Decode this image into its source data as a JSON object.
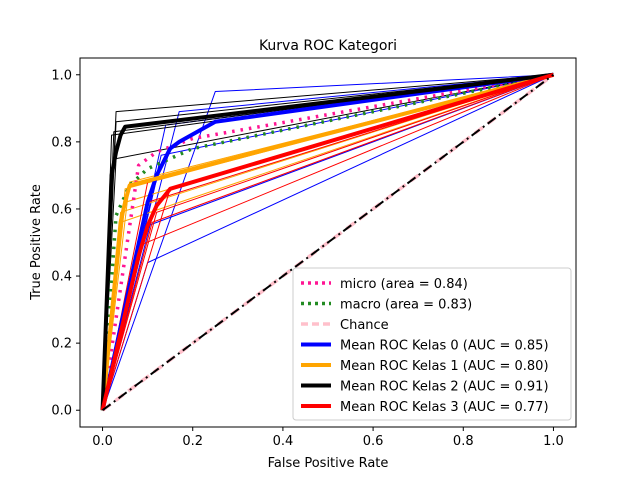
{
  "chart_data": {
    "type": "line",
    "title": "Kurva ROC Kategori",
    "xlabel": "False Positive Rate",
    "ylabel": "True Positive Rate",
    "xlim": [
      -0.05,
      1.05
    ],
    "ylim": [
      -0.05,
      1.05
    ],
    "x_ticks": [
      0.0,
      0.2,
      0.4,
      0.6,
      0.8,
      1.0
    ],
    "y_ticks": [
      0.0,
      0.2,
      0.4,
      0.6,
      0.8,
      1.0
    ],
    "x_tick_labels": [
      "0.0",
      "0.2",
      "0.4",
      "0.6",
      "0.8",
      "1.0"
    ],
    "y_tick_labels": [
      "0.0",
      "0.2",
      "0.4",
      "0.6",
      "0.8",
      "1.0"
    ],
    "grid": false,
    "legend_position": "lower right",
    "fold_curves": [
      {
        "class": 0,
        "color": "#0000ff",
        "x": [
          0,
          0.25,
          1
        ],
        "y": [
          0,
          0.95,
          1
        ]
      },
      {
        "class": 0,
        "color": "#0000ff",
        "x": [
          0,
          0.17,
          1
        ],
        "y": [
          0,
          0.89,
          1
        ]
      },
      {
        "class": 0,
        "color": "#0000ff",
        "x": [
          0,
          0.14,
          1
        ],
        "y": [
          0,
          0.85,
          1
        ]
      },
      {
        "class": 0,
        "color": "#0000ff",
        "x": [
          0,
          0.13,
          1
        ],
        "y": [
          0,
          0.76,
          1
        ]
      },
      {
        "class": 0,
        "color": "#0000ff",
        "x": [
          0,
          0.12,
          1
        ],
        "y": [
          0,
          0.69,
          1
        ]
      },
      {
        "class": 0,
        "color": "#0000ff",
        "x": [
          0,
          0.1,
          1
        ],
        "y": [
          0,
          0.55,
          1
        ]
      },
      {
        "class": 0,
        "color": "#0000ff",
        "x": [
          0,
          0.1,
          1
        ],
        "y": [
          0,
          0.44,
          1
        ]
      },
      {
        "class": 1,
        "color": "#ffa500",
        "x": [
          0,
          0.06,
          1
        ],
        "y": [
          0,
          0.68,
          1
        ]
      },
      {
        "class": 1,
        "color": "#ffa500",
        "x": [
          0,
          0.05,
          1
        ],
        "y": [
          0,
          0.66,
          1
        ]
      },
      {
        "class": 1,
        "color": "#ffa500",
        "x": [
          0,
          0.05,
          1
        ],
        "y": [
          0,
          0.62,
          1
        ]
      },
      {
        "class": 1,
        "color": "#ffa500",
        "x": [
          0,
          0.04,
          1
        ],
        "y": [
          0,
          0.59,
          1
        ]
      },
      {
        "class": 1,
        "color": "#ffa500",
        "x": [
          0,
          0.04,
          1
        ],
        "y": [
          0,
          0.56,
          1
        ]
      },
      {
        "class": 2,
        "color": "#000000",
        "x": [
          0,
          0.03,
          1
        ],
        "y": [
          0,
          0.89,
          1
        ]
      },
      {
        "class": 2,
        "color": "#000000",
        "x": [
          0,
          0.03,
          1
        ],
        "y": [
          0,
          0.86,
          1
        ]
      },
      {
        "class": 2,
        "color": "#000000",
        "x": [
          0,
          0.025,
          1
        ],
        "y": [
          0,
          0.83,
          1
        ]
      },
      {
        "class": 2,
        "color": "#000000",
        "x": [
          0,
          0.02,
          1
        ],
        "y": [
          0,
          0.82,
          1
        ]
      },
      {
        "class": 2,
        "color": "#000000",
        "x": [
          0,
          0.03,
          1
        ],
        "y": [
          0,
          0.75,
          1
        ]
      },
      {
        "class": 3,
        "color": "#ff0000",
        "x": [
          0,
          0.1,
          1
        ],
        "y": [
          0,
          0.68,
          1
        ]
      },
      {
        "class": 3,
        "color": "#ff0000",
        "x": [
          0,
          0.15,
          1
        ],
        "y": [
          0,
          0.66,
          1
        ]
      },
      {
        "class": 3,
        "color": "#ff0000",
        "x": [
          0,
          0.1,
          1
        ],
        "y": [
          0,
          0.62,
          1
        ]
      },
      {
        "class": 3,
        "color": "#ff0000",
        "x": [
          0,
          0.12,
          1
        ],
        "y": [
          0,
          0.59,
          1
        ]
      },
      {
        "class": 3,
        "color": "#ff0000",
        "x": [
          0,
          0.11,
          1
        ],
        "y": [
          0,
          0.56,
          1
        ]
      },
      {
        "class": 3,
        "color": "#ff0000",
        "x": [
          0,
          0.08,
          1
        ],
        "y": [
          0,
          0.49,
          1
        ]
      }
    ],
    "series": [
      {
        "name": "micro (area = 0.84)",
        "role": "micro",
        "color": "#ff1493",
        "style": "dotted",
        "x": [
          0,
          0.08,
          0.12,
          0.2,
          1
        ],
        "y": [
          0,
          0.73,
          0.77,
          0.81,
          1
        ]
      },
      {
        "name": "macro (area = 0.83)",
        "role": "macro",
        "color": "#228b22",
        "style": "dotted",
        "x": [
          0,
          0.03,
          0.06,
          0.1,
          0.2,
          1
        ],
        "y": [
          0,
          0.58,
          0.67,
          0.72,
          0.78,
          1
        ]
      },
      {
        "name": "Chance",
        "role": "chance",
        "color": "#ffc0cb",
        "style": "dashed",
        "x": [
          0,
          1
        ],
        "y": [
          0,
          1
        ]
      },
      {
        "name": "Mean ROC Kelas 0 (AUC = 0.85)",
        "role": "mean",
        "color": "#0000ff",
        "style": "solid",
        "x": [
          0,
          0.1,
          0.12,
          0.15,
          0.17,
          0.25,
          1
        ],
        "y": [
          0,
          0.62,
          0.7,
          0.78,
          0.8,
          0.86,
          1
        ]
      },
      {
        "name": "Mean ROC Kelas 1 (AUC = 0.80)",
        "role": "mean",
        "color": "#ffa500",
        "style": "solid",
        "x": [
          0,
          0.04,
          0.05,
          0.06,
          1
        ],
        "y": [
          0,
          0.56,
          0.62,
          0.67,
          1
        ]
      },
      {
        "name": "Mean ROC Kelas 2 (AUC = 0.91)",
        "role": "mean",
        "color": "#000000",
        "style": "solid",
        "x": [
          0,
          0.02,
          0.03,
          0.04,
          0.05,
          1
        ],
        "y": [
          0,
          0.7,
          0.77,
          0.82,
          0.845,
          1
        ]
      },
      {
        "name": "Mean ROC Kelas 3 (AUC = 0.77)",
        "role": "mean",
        "color": "#ff0000",
        "style": "solid",
        "x": [
          0,
          0.08,
          0.1,
          0.12,
          0.15,
          1
        ],
        "y": [
          0,
          0.46,
          0.55,
          0.61,
          0.66,
          1
        ]
      }
    ],
    "reference_line": {
      "color": "#000000",
      "style": "dashdot",
      "x": [
        0,
        1
      ],
      "y": [
        0,
        1
      ]
    }
  }
}
